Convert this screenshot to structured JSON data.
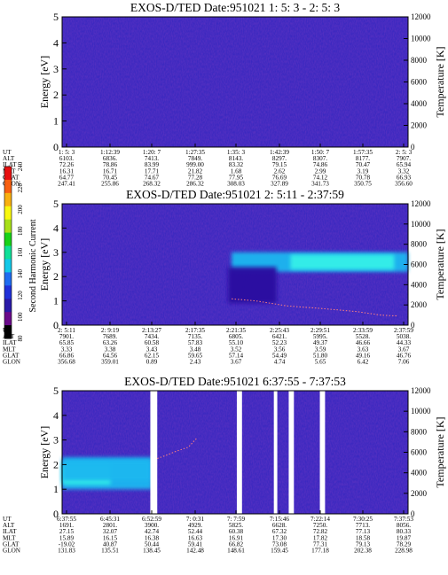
{
  "chart_data": {
    "type": "heatmap",
    "colorbar": {
      "label": "Second Harmonic Current",
      "ticks": [
        "80",
        "100",
        "120",
        "140",
        "160",
        "180",
        "200",
        "220",
        "240"
      ],
      "colors": [
        "#000000",
        "#6a0a8a",
        "#2a1aa8",
        "#2030d8",
        "#1f6cf0",
        "#13c8e8",
        "#10e098",
        "#18d218",
        "#a8e018",
        "#f8f810",
        "#f8b010",
        "#f86010",
        "#e81010"
      ]
    },
    "panels": [
      {
        "title": "EXOS-D/TED   Date:951021  1: 5: 3 - 2: 5: 3",
        "ylabel": "Energy [eV]",
        "y2label": "Temperature [K]",
        "ylim": [
          0,
          5
        ],
        "yticks": [
          "0",
          "1",
          "2",
          "3",
          "4",
          "5"
        ],
        "y2lim": [
          0,
          12000
        ],
        "y2ticks": [
          "0",
          "2000",
          "4000",
          "6000",
          "8000",
          "10000",
          "12000"
        ],
        "row_labels": [
          "UT",
          "ALT",
          "ILAT",
          "MLT",
          "GLAT",
          "GLON"
        ],
        "columns": [
          [
            "1: 5: 3",
            "6103.",
            "72.26",
            "16.31",
            "64.77",
            "247.41"
          ],
          [
            "1:12:39",
            "6836.",
            "78.86",
            "16.71",
            "70.45",
            "255.86"
          ],
          [
            "1:20: 7",
            "7413.",
            "83.99",
            "17.71",
            "74.67",
            "268.32"
          ],
          [
            "1:27:35",
            "7849.",
            "999.00",
            "21.82",
            "77.28",
            "286.32"
          ],
          [
            "1:35: 3",
            "8143.",
            "83.32",
            "1.68",
            "77.95",
            "308.03"
          ],
          [
            "1:42:39",
            "8297.",
            "79.15",
            "2.62",
            "76.69",
            "327.89"
          ],
          [
            "1:50: 7",
            "8307.",
            "74.86",
            "2.99",
            "74.12",
            "341.73"
          ],
          [
            "1:57:35",
            "8177.",
            "70.47",
            "3.19",
            "70.78",
            "350.75"
          ],
          [
            "2: 5: 3",
            "7907.",
            "65.94",
            "3.32",
            "66.93",
            "356.60"
          ]
        ],
        "background": "#3a28c0",
        "features": []
      },
      {
        "title": "EXOS-D/TED   Date:951021  2: 5:11 - 2:37:59",
        "ylabel": "Energy [eV]",
        "y2label": "Temperature [K]",
        "ylim": [
          0,
          5
        ],
        "yticks": [
          "0",
          "1",
          "2",
          "3",
          "4",
          "5"
        ],
        "y2lim": [
          0,
          12000
        ],
        "y2ticks": [
          "0",
          "2000",
          "4000",
          "6000",
          "8000",
          "10000",
          "12000"
        ],
        "row_labels": [
          "UT",
          "ALT",
          "ILAT",
          "MLT",
          "GLAT",
          "GLON"
        ],
        "columns": [
          [
            "2: 5:11",
            "7901.",
            "65.85",
            "3.33",
            "66.86",
            "356.68"
          ],
          [
            "2: 9:19",
            "7689.",
            "63.26",
            "3.38",
            "64.56",
            "359.01"
          ],
          [
            "2:13:27",
            "7434.",
            "60.58",
            "3.43",
            "62.15",
            "0.89"
          ],
          [
            "2:17:35",
            "7135.",
            "57.83",
            "3.48",
            "59.65",
            "2.43"
          ],
          [
            "2:21:35",
            "6805.",
            "55.10",
            "3.52",
            "57.14",
            "3.67"
          ],
          [
            "2:25:43",
            "6421.",
            "52.23",
            "3.56",
            "54.49",
            "4.74"
          ],
          [
            "2:29:51",
            "5995.",
            "49.37",
            "3.59",
            "51.80",
            "5.65"
          ],
          [
            "2:33:59",
            "5528.",
            "46.66",
            "3.63",
            "49.16",
            "6.42"
          ],
          [
            "2:37:59",
            "5038.",
            "44.33",
            "3.67",
            "46.76",
            "7.06"
          ]
        ],
        "background": "#3a28c0",
        "features": [
          {
            "color": "#1ab8f0",
            "x0": 0.49,
            "x1": 1.0,
            "y0": 2.2,
            "y1": 3.0
          },
          {
            "color": "#35f0e8",
            "x0": 0.66,
            "x1": 0.96,
            "y0": 2.3,
            "y1": 2.9
          },
          {
            "color": "#2a10a0",
            "x0": 0.48,
            "x1": 0.62,
            "y0": 0.9,
            "y1": 2.4
          }
        ],
        "temperature_trace": {
          "color": "#ff8080",
          "points": [
            [
              0.49,
              2600
            ],
            [
              0.56,
              2400
            ],
            [
              0.65,
              1900
            ],
            [
              0.75,
              1650
            ],
            [
              0.85,
              1350
            ],
            [
              0.92,
              1000
            ],
            [
              0.97,
              900
            ]
          ]
        }
      },
      {
        "title": "EXOS-D/TED   Date:951021  6:37:55 - 7:37:53",
        "ylabel": "Energy [eV]",
        "y2label": "Temperature [K]",
        "ylim": [
          0,
          5
        ],
        "yticks": [
          "0",
          "1",
          "2",
          "3",
          "4",
          "5"
        ],
        "y2lim": [
          0,
          12000
        ],
        "y2ticks": [
          "0",
          "2000",
          "4000",
          "6000",
          "8000",
          "10000",
          "12000"
        ],
        "row_labels": [
          "UT",
          "ALT",
          "ILAT",
          "MLT",
          "GLAT",
          "GLON"
        ],
        "columns": [
          [
            "6:37:55",
            "1691.",
            "27.15",
            "15.89",
            "-19.02",
            "131.83"
          ],
          [
            "6:45:31",
            "2801.",
            "32.07",
            "16.15",
            "40.87",
            "135.51"
          ],
          [
            "6:52:59",
            "3900.",
            "42.74",
            "16.38",
            "50.44",
            "138.45"
          ],
          [
            "7: 0:31",
            "4929.",
            "52.44",
            "16.63",
            "59.41",
            "142.48"
          ],
          [
            "7: 7:59",
            "5825.",
            "60.38",
            "16.91",
            "66.82",
            "148.61"
          ],
          [
            "7:15:46",
            "6628.",
            "67.32",
            "17.30",
            "73.08",
            "159.45"
          ],
          [
            "7:22:14",
            "7250.",
            "72.82",
            "17.82",
            "77.31",
            "177.18"
          ],
          [
            "7:30:25",
            "7713.",
            "77.13",
            "18.58",
            "79.13",
            "202.38"
          ],
          [
            "7:37:53",
            "8056.",
            "80.33",
            "19.87",
            "78.29",
            "228.98"
          ]
        ],
        "background": "#3a28c0",
        "features": [
          {
            "color": "#1ab8f0",
            "x0": 0.0,
            "x1": 0.26,
            "y0": 1.0,
            "y1": 2.3
          },
          {
            "color": "#35f0e8",
            "x0": 0.0,
            "x1": 0.14,
            "y0": 1.2,
            "y1": 2.0
          },
          {
            "color": "#1ab8f0",
            "x0": 0.0,
            "x1": 0.255,
            "y0": 1.35,
            "y1": 2.15
          }
        ],
        "data_gaps": [
          {
            "x0": 0.255,
            "x1": 0.275
          },
          {
            "x0": 0.505,
            "x1": 0.52
          },
          {
            "x0": 0.612,
            "x1": 0.622
          },
          {
            "x0": 0.655,
            "x1": 0.67
          },
          {
            "x0": 0.745,
            "x1": 0.76
          }
        ],
        "temperature_trace": {
          "color": "#ff8080",
          "points": [
            [
              0.275,
              5400
            ],
            [
              0.3,
              5700
            ],
            [
              0.33,
              6100
            ],
            [
              0.365,
              6500
            ],
            [
              0.39,
              7400
            ]
          ]
        }
      }
    ]
  }
}
